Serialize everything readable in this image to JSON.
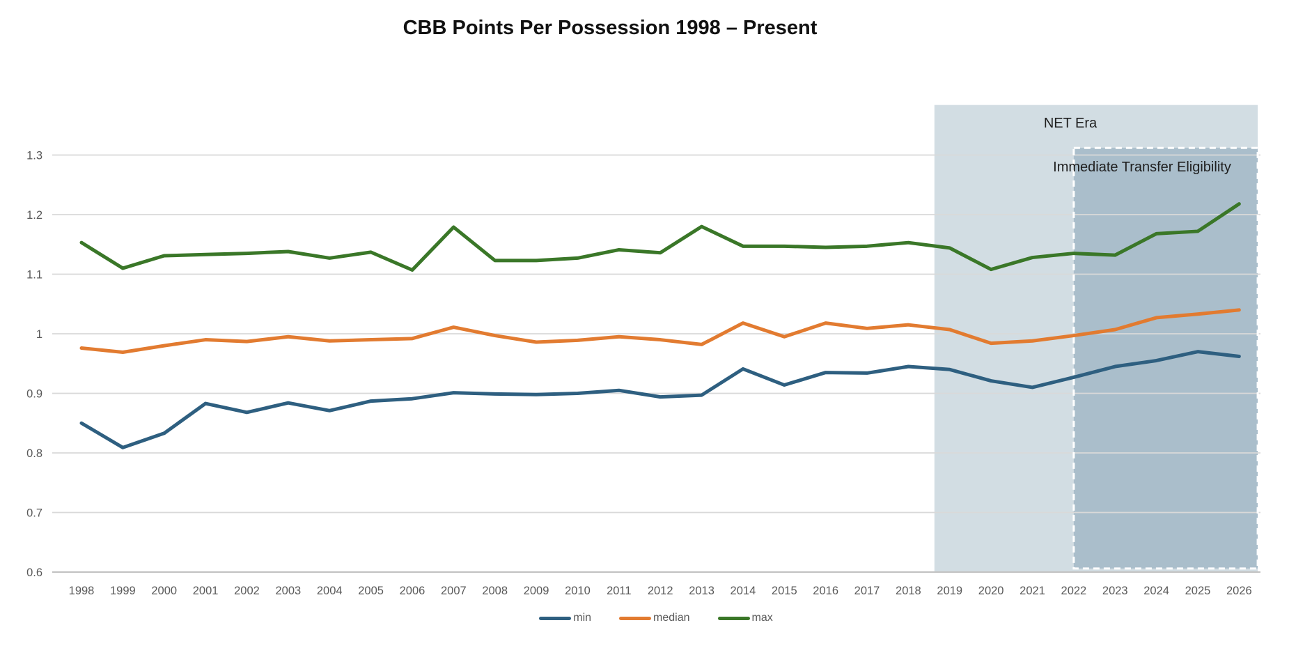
{
  "title": "CBB Points Per Possession 1998 – Present",
  "colors": {
    "background": "#ffffff",
    "gridline": "#d9d9d9",
    "axis_line": "#c3c3c3",
    "axis_text": "#595959",
    "title_text": "#111111",
    "region_label_text": "#1f1f1f",
    "region_border": "#ffffff"
  },
  "chart_data": {
    "type": "line",
    "x": [
      1998,
      1999,
      2000,
      2001,
      2002,
      2003,
      2004,
      2005,
      2006,
      2007,
      2008,
      2009,
      2010,
      2011,
      2012,
      2013,
      2014,
      2015,
      2016,
      2017,
      2018,
      2019,
      2020,
      2021,
      2022,
      2023,
      2024,
      2025,
      2026
    ],
    "series": [
      {
        "name": "min",
        "color": "#2e5f80",
        "values": [
          0.85,
          0.809,
          0.833,
          0.883,
          0.868,
          0.884,
          0.871,
          0.887,
          0.891,
          0.901,
          0.899,
          0.898,
          0.9,
          0.905,
          0.894,
          0.897,
          0.941,
          0.914,
          0.935,
          0.934,
          0.945,
          0.94,
          0.921,
          0.91,
          0.927,
          0.945,
          0.955,
          0.97,
          0.962
        ]
      },
      {
        "name": "median",
        "color": "#e27b30",
        "values": [
          0.976,
          0.969,
          0.98,
          0.99,
          0.987,
          0.995,
          0.988,
          0.99,
          0.992,
          1.011,
          0.997,
          0.986,
          0.989,
          0.995,
          0.99,
          0.982,
          1.018,
          0.995,
          1.018,
          1.009,
          1.015,
          1.007,
          0.984,
          0.988,
          0.997,
          1.007,
          1.027,
          1.033,
          1.04
        ]
      },
      {
        "name": "max",
        "color": "#3a7728",
        "values": [
          1.153,
          1.11,
          1.131,
          1.133,
          1.135,
          1.138,
          1.127,
          1.137,
          1.107,
          1.179,
          1.123,
          1.123,
          1.127,
          1.141,
          1.136,
          1.18,
          1.147,
          1.147,
          1.145,
          1.147,
          1.153,
          1.144,
          1.108,
          1.128,
          1.135,
          1.132,
          1.168,
          1.172,
          1.218
        ]
      }
    ],
    "title": "CBB Points Per Possession 1998 – Present",
    "xlabel": "",
    "ylabel": "",
    "ylim": [
      0.6,
      1.39
    ],
    "yticks": [
      0.6,
      0.7,
      0.8,
      0.9,
      1.0,
      1.1,
      1.2,
      1.3
    ],
    "ytick_labels": [
      "0.6",
      "0.7",
      "0.8",
      "0.9",
      "1",
      "1.1",
      "1.2",
      "1.3"
    ],
    "grid": "horizontal",
    "legend_position": "bottom",
    "annotations": {
      "regions": [
        {
          "label": "NET Era",
          "x_start": 2018.63,
          "x_end": 2026.45,
          "y_top": 1.384,
          "y_bottom": 0.6,
          "fill": "#d2dde3",
          "fill_opacity": 1,
          "border": "none"
        },
        {
          "label": "Immediate Transfer Eligibility",
          "x_start": 2022.0,
          "x_end": 2026.45,
          "y_top": 1.312,
          "y_bottom": 0.606,
          "fill": "#799aae",
          "fill_opacity": 0.45,
          "border": "dashed-white"
        }
      ]
    }
  }
}
